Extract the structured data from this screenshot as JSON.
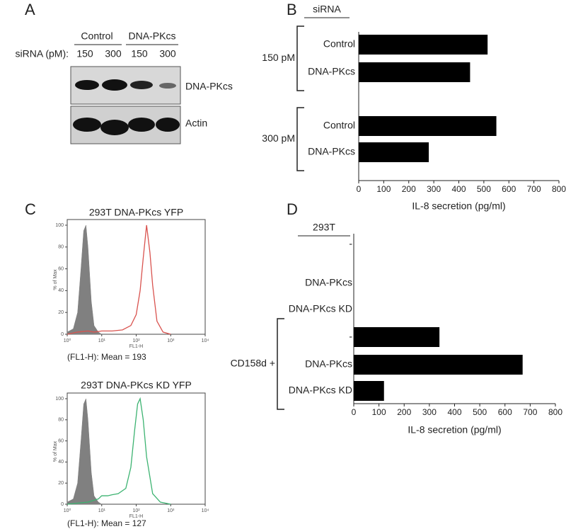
{
  "blot": {
    "panel_label": "A",
    "row_label": "siRNA (pM):",
    "groups": [
      {
        "label": "Control",
        "lanes": [
          "150",
          "300"
        ]
      },
      {
        "label": "DNA-PKcs",
        "lanes": [
          "150",
          "300"
        ]
      }
    ],
    "blots": [
      "DNA-PKcs",
      "Actin"
    ]
  },
  "chart_data": [
    {
      "type": "hbar",
      "panel_label": "B",
      "category_header": "siRNA",
      "xlabel": "IL-8 secretion (pg/ml)",
      "color": "#000000",
      "xlim": [
        0,
        800
      ],
      "xticks": [
        0,
        100,
        200,
        300,
        400,
        500,
        600,
        700,
        800
      ],
      "groups": [
        {
          "label": "150 pM",
          "categories": [
            "Control",
            "DNA-PKcs"
          ],
          "values": [
            515,
            445
          ]
        },
        {
          "label": "300 pM",
          "categories": [
            "Control",
            "DNA-PKcs"
          ],
          "values": [
            550,
            280
          ]
        }
      ]
    },
    {
      "type": "hbar",
      "panel_label": "D",
      "category_header": "293T",
      "xlabel": "IL-8 secretion (pg/ml)",
      "color": "#000000",
      "xlim": [
        0,
        800
      ],
      "xticks": [
        0,
        100,
        200,
        300,
        400,
        500,
        600,
        700,
        800
      ],
      "groups": [
        {
          "categories": [
            "-",
            "DNA-PKcs",
            "DNA-PKcs KD"
          ],
          "values": [
            0,
            0,
            0
          ]
        },
        {
          "label": "CD158d +",
          "categories": [
            "-",
            "DNA-PKcs",
            "DNA-PKcs KD"
          ],
          "values": [
            340,
            670,
            120
          ]
        }
      ]
    },
    {
      "type": "histogram-overlay",
      "panel_label": "C",
      "title": "293T DNA-PKcs YFP",
      "annotation": "(FL1-H): Mean = 193",
      "xlabel": "FL1-H",
      "ylabel": "% of Max",
      "xscale": "log",
      "xlim": [
        1,
        10000
      ],
      "xticks": [
        {
          "value": 1,
          "label": "10⁰"
        },
        {
          "value": 10,
          "label": "10¹"
        },
        {
          "value": 100,
          "label": "10²"
        },
        {
          "value": 1000,
          "label": "10³"
        },
        {
          "value": 10000,
          "label": "10⁴"
        }
      ],
      "ylim": [
        0,
        100
      ],
      "yticks": [
        0,
        20,
        40,
        60,
        80,
        100
      ],
      "series": [
        {
          "color": "#808080",
          "filled": true,
          "x": [
            1,
            1.5,
            2,
            2.5,
            3,
            3.5,
            4,
            5,
            6,
            8,
            10
          ],
          "values": [
            2,
            5,
            20,
            60,
            95,
            100,
            80,
            30,
            8,
            2,
            0
          ]
        },
        {
          "color": "#d9534f",
          "filled": false,
          "x": [
            1,
            2,
            4,
            6,
            10,
            20,
            40,
            70,
            100,
            130,
            160,
            200,
            250,
            300,
            400,
            600,
            1000
          ],
          "values": [
            0,
            2,
            3,
            2,
            3,
            3,
            4,
            8,
            18,
            40,
            70,
            100,
            75,
            45,
            12,
            2,
            0
          ]
        }
      ]
    },
    {
      "type": "histogram-overlay",
      "title": "293T DNA-PKcs KD YFP",
      "annotation": "(FL1-H): Mean = 127",
      "xlabel": "FL1-H",
      "ylabel": "% of Max",
      "xscale": "log",
      "xlim": [
        1,
        10000
      ],
      "xticks": [
        {
          "value": 1,
          "label": "10⁰"
        },
        {
          "value": 10,
          "label": "10¹"
        },
        {
          "value": 100,
          "label": "10²"
        },
        {
          "value": 1000,
          "label": "10³"
        },
        {
          "value": 10000,
          "label": "10⁴"
        }
      ],
      "ylim": [
        0,
        100
      ],
      "yticks": [
        0,
        20,
        40,
        60,
        80,
        100
      ],
      "series": [
        {
          "color": "#808080",
          "filled": true,
          "x": [
            1,
            1.5,
            2,
            2.5,
            3,
            3.5,
            4,
            5,
            6,
            8,
            10
          ],
          "values": [
            2,
            5,
            20,
            60,
            95,
            100,
            80,
            30,
            8,
            2,
            0
          ]
        },
        {
          "color": "#3cb371",
          "filled": false,
          "x": [
            1,
            2,
            4,
            8,
            10,
            15,
            20,
            30,
            50,
            70,
            90,
            110,
            130,
            160,
            200,
            300,
            500,
            1000
          ],
          "values": [
            0,
            1,
            2,
            5,
            8,
            8,
            9,
            10,
            15,
            35,
            70,
            95,
            100,
            80,
            45,
            10,
            2,
            0
          ]
        }
      ]
    }
  ]
}
